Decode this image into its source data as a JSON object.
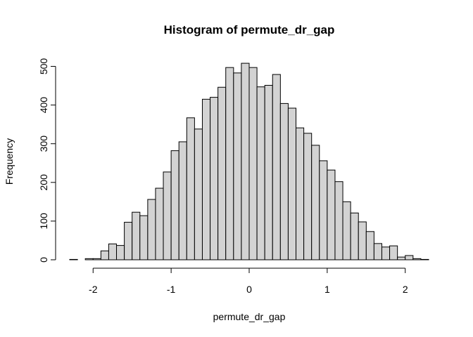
{
  "colors": {
    "bar_fill": "#d3d3d3",
    "bar_stroke": "#000000",
    "background": "#ffffff"
  },
  "chart_data": {
    "type": "bar",
    "title": "Histogram of permute_dr_gap",
    "xlabel": "permute_dr_gap",
    "ylabel": "Frequency",
    "bin_width": 0.1,
    "bins_left_edges": [
      -2.3,
      -2.2,
      -2.1,
      -2.0,
      -1.9,
      -1.8,
      -1.7,
      -1.6,
      -1.5,
      -1.4,
      -1.3,
      -1.2,
      -1.1,
      -1.0,
      -0.9,
      -0.8,
      -0.7,
      -0.6,
      -0.5,
      -0.4,
      -0.3,
      -0.2,
      -0.1,
      0.0,
      0.1,
      0.2,
      0.3,
      0.4,
      0.5,
      0.6,
      0.7,
      0.8,
      0.9,
      1.0,
      1.1,
      1.2,
      1.3,
      1.4,
      1.5,
      1.6,
      1.7,
      1.8,
      1.9,
      2.0,
      2.1,
      2.2
    ],
    "values": [
      1,
      0,
      3,
      3,
      23,
      41,
      37,
      97,
      123,
      114,
      156,
      185,
      227,
      282,
      305,
      367,
      338,
      415,
      420,
      446,
      497,
      483,
      508,
      497,
      447,
      451,
      479,
      404,
      392,
      341,
      327,
      296,
      256,
      232,
      202,
      150,
      121,
      98,
      73,
      42,
      33,
      36,
      7,
      11,
      3,
      1
    ],
    "xlim": [
      -2.3,
      2.3
    ],
    "ylim": [
      0,
      510
    ],
    "x_ticks": [
      -2,
      -1,
      0,
      1,
      2
    ],
    "x_tick_labels": [
      "-2",
      "-1",
      "0",
      "1",
      "2"
    ],
    "y_ticks": [
      0,
      100,
      200,
      300,
      400,
      500
    ],
    "y_tick_labels": [
      "0",
      "100",
      "200",
      "300",
      "400",
      "500"
    ],
    "grid": false,
    "legend": "none"
  }
}
